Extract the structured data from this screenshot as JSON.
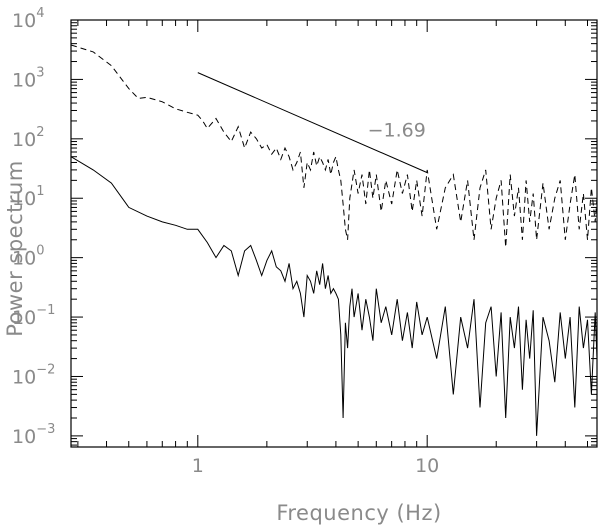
{
  "chart_data": {
    "type": "line",
    "title": "",
    "xlabel": "Frequency (Hz)",
    "ylabel": "Power spectrum",
    "x_scale": "log",
    "y_scale": "log",
    "xlim": [
      0.28,
      55
    ],
    "ylim": [
      0.00065,
      10000
    ],
    "grid": false,
    "legend": "none",
    "x_ticks": [
      {
        "value": 1,
        "label": "1"
      },
      {
        "value": 10,
        "label": "10"
      }
    ],
    "y_ticks": [
      {
        "value": 0.001,
        "base": "10",
        "exp": "−3"
      },
      {
        "value": 0.01,
        "base": "10",
        "exp": "−2"
      },
      {
        "value": 0.1,
        "base": "10",
        "exp": "−1"
      },
      {
        "value": 1,
        "base": "10",
        "exp": "0"
      },
      {
        "value": 10,
        "base": "10",
        "exp": "1"
      },
      {
        "value": 100,
        "base": "10",
        "exp": "2"
      },
      {
        "value": 1000,
        "base": "10",
        "exp": "3"
      },
      {
        "value": 10000,
        "base": "10",
        "exp": "4"
      }
    ],
    "annotations": [
      {
        "text": "−1.69",
        "x": 5.5,
        "y": 110
      }
    ],
    "reference_line": {
      "x": [
        1.0,
        10.0
      ],
      "y": [
        1300,
        27
      ],
      "slope": -1.69
    },
    "series": [
      {
        "style": "dashed",
        "x": [
          0.28,
          0.35,
          0.42,
          0.5,
          0.55,
          0.6,
          0.7,
          0.8,
          0.9,
          1.0,
          1.05,
          1.1,
          1.2,
          1.3,
          1.4,
          1.5,
          1.6,
          1.7,
          1.8,
          1.9,
          2.0,
          2.1,
          2.2,
          2.3,
          2.4,
          2.5,
          2.6,
          2.7,
          2.8,
          2.9,
          3.0,
          3.1,
          3.2,
          3.3,
          3.4,
          3.5,
          3.6,
          3.7,
          3.8,
          3.9,
          4.0,
          4.1,
          4.2,
          4.3,
          4.4,
          4.5,
          4.6,
          4.8,
          5.0,
          5.2,
          5.4,
          5.6,
          5.8,
          6.0,
          6.3,
          6.6,
          7.0,
          7.4,
          7.8,
          8.2,
          8.6,
          9.0,
          9.5,
          10.0,
          11.0,
          12.0,
          13.0,
          14.0,
          15.0,
          16.0,
          17.0,
          18.0,
          19.0,
          20.0,
          21.0,
          22.0,
          23.0,
          24.0,
          25.0,
          26.0,
          27.0,
          28.0,
          29.0,
          30.0,
          32.0,
          34.0,
          36.0,
          38.0,
          40.0,
          42.0,
          44.0,
          46.0,
          48.0,
          50.0,
          52.0,
          54.0,
          55.0
        ],
        "y": [
          3800,
          2900,
          1700,
          700,
          480,
          500,
          420,
          320,
          280,
          250,
          200,
          150,
          220,
          130,
          90,
          160,
          70,
          130,
          100,
          70,
          80,
          55,
          70,
          45,
          70,
          50,
          30,
          40,
          60,
          15,
          40,
          30,
          60,
          35,
          50,
          40,
          30,
          45,
          25,
          40,
          50,
          30,
          20,
          8,
          3,
          2,
          10,
          30,
          12,
          25,
          8,
          30,
          10,
          25,
          6,
          20,
          8,
          30,
          12,
          25,
          6,
          20,
          5,
          30,
          3,
          15,
          25,
          4,
          20,
          2,
          15,
          30,
          3,
          10,
          20,
          1.5,
          25,
          5,
          15,
          2,
          20,
          4,
          12,
          2,
          18,
          3,
          10,
          20,
          2,
          8,
          25,
          3,
          12,
          2,
          15,
          4,
          10
        ]
      },
      {
        "style": "solid",
        "x": [
          0.28,
          0.35,
          0.42,
          0.5,
          0.6,
          0.7,
          0.8,
          0.9,
          1.0,
          1.1,
          1.2,
          1.3,
          1.4,
          1.5,
          1.6,
          1.7,
          1.8,
          1.9,
          2.0,
          2.1,
          2.2,
          2.3,
          2.4,
          2.5,
          2.6,
          2.7,
          2.8,
          2.9,
          3.0,
          3.1,
          3.2,
          3.3,
          3.4,
          3.5,
          3.6,
          3.7,
          3.8,
          3.9,
          4.0,
          4.1,
          4.2,
          4.3,
          4.4,
          4.5,
          4.6,
          4.7,
          4.8,
          5.0,
          5.2,
          5.4,
          5.6,
          5.8,
          6.0,
          6.3,
          6.6,
          7.0,
          7.4,
          7.8,
          8.2,
          8.6,
          9.0,
          9.5,
          10.0,
          11.0,
          12.0,
          13.0,
          14.0,
          15.0,
          16.0,
          17.0,
          18.0,
          19.0,
          20.0,
          21.0,
          22.0,
          23.0,
          24.0,
          25.0,
          26.0,
          27.0,
          28.0,
          29.0,
          30.0,
          32.0,
          34.0,
          36.0,
          38.0,
          40.0,
          42.0,
          44.0,
          46.0,
          48.0,
          50.0,
          52.0,
          54.0,
          55.0
        ],
        "y": [
          50,
          30,
          18,
          7,
          5,
          4,
          3.5,
          3,
          3,
          1.8,
          1,
          1.6,
          1.3,
          0.5,
          1.3,
          1.6,
          0.9,
          0.5,
          0.9,
          1.3,
          0.7,
          0.6,
          0.4,
          0.8,
          0.3,
          0.4,
          0.25,
          0.1,
          0.5,
          0.4,
          0.25,
          0.6,
          0.35,
          0.8,
          0.3,
          0.5,
          0.25,
          0.3,
          0.25,
          0.2,
          0.05,
          0.002,
          0.08,
          0.03,
          0.15,
          0.3,
          0.1,
          0.25,
          0.06,
          0.2,
          0.1,
          0.04,
          0.3,
          0.08,
          0.15,
          0.05,
          0.2,
          0.04,
          0.12,
          0.03,
          0.18,
          0.05,
          0.1,
          0.02,
          0.15,
          0.005,
          0.1,
          0.03,
          0.2,
          0.003,
          0.08,
          0.15,
          0.01,
          0.12,
          0.002,
          0.1,
          0.03,
          0.15,
          0.006,
          0.09,
          0.02,
          0.13,
          0.001,
          0.1,
          0.04,
          0.008,
          0.12,
          0.02,
          0.1,
          0.003,
          0.15,
          0.03,
          0.09,
          0.005,
          0.12,
          0.02
        ]
      }
    ]
  }
}
